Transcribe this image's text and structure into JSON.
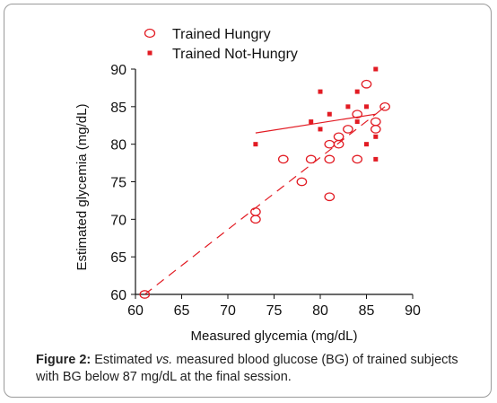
{
  "chart_data": {
    "type": "scatter",
    "xlabel": "Measured glycemia (mg/dL)",
    "ylabel": "Estimated glycemia (mg/dL)",
    "xlim": [
      60,
      90
    ],
    "ylim": [
      60,
      90
    ],
    "xticks": [
      "60",
      "65",
      "70",
      "75",
      "80",
      "85",
      "90"
    ],
    "yticks": [
      "60",
      "65",
      "70",
      "75",
      "80",
      "85",
      "90"
    ],
    "legend_position": "top",
    "series": [
      {
        "name": "Trained Hungry",
        "marker": "open-circle",
        "color": "#e21b23",
        "points": [
          [
            61,
            60
          ],
          [
            73,
            71
          ],
          [
            73,
            70
          ],
          [
            76,
            78
          ],
          [
            78,
            75
          ],
          [
            79,
            78
          ],
          [
            81,
            80
          ],
          [
            81,
            78
          ],
          [
            81,
            73
          ],
          [
            82,
            81
          ],
          [
            82,
            80
          ],
          [
            83,
            82
          ],
          [
            84,
            84
          ],
          [
            84,
            78
          ],
          [
            85,
            88
          ],
          [
            86,
            83
          ],
          [
            86,
            82
          ],
          [
            87,
            85
          ]
        ]
      },
      {
        "name": "Trained Not-Hungry",
        "marker": "filled-square",
        "color": "#e21b23",
        "points": [
          [
            73,
            80
          ],
          [
            79,
            83
          ],
          [
            80,
            87
          ],
          [
            80,
            82
          ],
          [
            81,
            84
          ],
          [
            83,
            85
          ],
          [
            84,
            87
          ],
          [
            84,
            83
          ],
          [
            85,
            85
          ],
          [
            85,
            80
          ],
          [
            86,
            90
          ],
          [
            86,
            81
          ],
          [
            86,
            78
          ]
        ]
      }
    ],
    "trendlines": [
      {
        "series": "Trained Hungry",
        "style": "dashed",
        "from": [
          61,
          60
        ],
        "to": [
          86,
          84
        ]
      },
      {
        "series": "Trained Hungry",
        "style": "solid",
        "from": [
          86,
          84
        ],
        "to": [
          87,
          85
        ]
      },
      {
        "series": "Trained Not-Hungry",
        "style": "solid",
        "from": [
          73,
          81.5
        ],
        "to": [
          86,
          84
        ]
      }
    ]
  },
  "caption": {
    "label": "Figure 2:",
    "text_a": " Estimated ",
    "text_italic": "vs.",
    "text_b": " measured blood glucose (BG) of trained subjects with BG below 87 mg/dL at the final session."
  },
  "colors": {
    "series": "#e21b23",
    "axis": "#111111",
    "frame": "#9a9a9a"
  }
}
